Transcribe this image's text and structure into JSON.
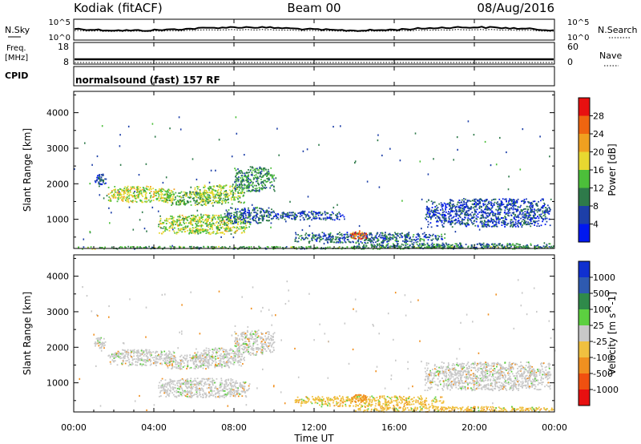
{
  "header": {
    "station": "Kodiak (fitACF)",
    "beam": "Beam 00",
    "date": "08/Aug/2016"
  },
  "noise_panel": {
    "left_label": "N.Sky",
    "right_label": "N.Search",
    "left_ticks": [
      "10^5",
      "10^0"
    ],
    "right_ticks": [
      "10^5",
      "10^0"
    ]
  },
  "freq_panel": {
    "left_label_1": "Freq.",
    "left_label_2": "[MHz]",
    "right_label": "Nave",
    "left_ticks": [
      "18",
      "8"
    ],
    "right_ticks": [
      "60",
      "0"
    ]
  },
  "cpid_panel": {
    "label": "CPID",
    "text": "normalsound (fast) 157 RF"
  },
  "chart_data": [
    {
      "type": "heatmap",
      "name": "power",
      "ylabel": "Slant Range [km]",
      "xlabel": "",
      "yticks": [
        "1000",
        "2000",
        "3000",
        "4000"
      ],
      "ylim": [
        180,
        4600
      ],
      "colorbar": {
        "label": "Power [dB]",
        "ticks": [
          "4",
          "8",
          "12",
          "16",
          "20",
          "24",
          "28"
        ],
        "range": [
          0,
          32
        ],
        "colors": [
          "#0018f0",
          "#1d3fa8",
          "#2e7a4a",
          "#4cbf3a",
          "#e8d830",
          "#f0a020",
          "#ef6510",
          "#e81010"
        ]
      },
      "echo_regions": [
        {
          "t": [
            1.0,
            1.6
          ],
          "r": [
            1950,
            2300
          ],
          "p": 6
        },
        {
          "t": [
            1.7,
            5.0
          ],
          "r": [
            1500,
            1950
          ],
          "p": 17
        },
        {
          "t": [
            4.5,
            6.8
          ],
          "r": [
            1400,
            1800
          ],
          "p": 14
        },
        {
          "t": [
            6.0,
            8.5
          ],
          "r": [
            1450,
            2000
          ],
          "p": 15
        },
        {
          "t": [
            8.0,
            10.0
          ],
          "r": [
            1800,
            2500
          ],
          "p": 11
        },
        {
          "t": [
            4.2,
            8.8
          ],
          "r": [
            600,
            1150
          ],
          "p": 16
        },
        {
          "t": [
            7.5,
            10.0
          ],
          "r": [
            900,
            1350
          ],
          "p": 8
        },
        {
          "t": [
            10.0,
            13.5
          ],
          "r": [
            1000,
            1250
          ],
          "p": 6
        },
        {
          "t": [
            11.0,
            18.5
          ],
          "r": [
            350,
            650
          ],
          "p": 8
        },
        {
          "t": [
            13.8,
            14.6
          ],
          "r": [
            450,
            700
          ],
          "p": 26
        },
        {
          "t": [
            17.5,
            23.8
          ],
          "r": [
            800,
            1600
          ],
          "p": 6
        },
        {
          "t": [
            14.0,
            24.0
          ],
          "r": [
            200,
            350
          ],
          "p": 9
        },
        {
          "t": [
            0.2,
            24.0
          ],
          "r": [
            180,
            260
          ],
          "p": 12
        }
      ]
    },
    {
      "type": "heatmap",
      "name": "velocity",
      "ylabel": "Slant Range [km]",
      "xlabel": "Time UT",
      "xticks": [
        "00:00",
        "04:00",
        "08:00",
        "12:00",
        "16:00",
        "20:00",
        "00:00"
      ],
      "xlim": [
        0,
        24
      ],
      "yticks": [
        "1000",
        "2000",
        "3000",
        "4000"
      ],
      "ylim": [
        180,
        4600
      ],
      "colorbar": {
        "label": "Velocity [m s^-1]",
        "ticks": [
          "1000",
          "500",
          "100",
          "25",
          "-25",
          "-100",
          "-500",
          "-1000"
        ],
        "colors": [
          "#1030d0",
          "#2e5ab0",
          "#2f8a4a",
          "#5cd040",
          "#c8c8c8",
          "#f0c040",
          "#f09020",
          "#f05010",
          "#e81010"
        ]
      },
      "echo_regions": [
        {
          "t": [
            1.0,
            1.6
          ],
          "r": [
            1950,
            2300
          ],
          "v": "25"
        },
        {
          "t": [
            1.7,
            5.0
          ],
          "r": [
            1500,
            1950
          ],
          "v": "25"
        },
        {
          "t": [
            4.5,
            6.8
          ],
          "r": [
            1400,
            1800
          ],
          "v": "25"
        },
        {
          "t": [
            6.0,
            8.5
          ],
          "r": [
            1450,
            2000
          ],
          "v": "25"
        },
        {
          "t": [
            8.0,
            10.0
          ],
          "r": [
            1800,
            2500
          ],
          "v": "25"
        },
        {
          "t": [
            4.2,
            8.8
          ],
          "r": [
            600,
            1150
          ],
          "v": "25"
        },
        {
          "t": [
            11.0,
            18.5
          ],
          "r": [
            350,
            650
          ],
          "v": "-25"
        },
        {
          "t": [
            13.8,
            14.6
          ],
          "r": [
            450,
            700
          ],
          "v": "-100"
        },
        {
          "t": [
            17.5,
            23.8
          ],
          "r": [
            800,
            1600
          ],
          "v": "25"
        },
        {
          "t": [
            14.0,
            24.0
          ],
          "r": [
            200,
            350
          ],
          "v": "-25"
        }
      ]
    }
  ]
}
